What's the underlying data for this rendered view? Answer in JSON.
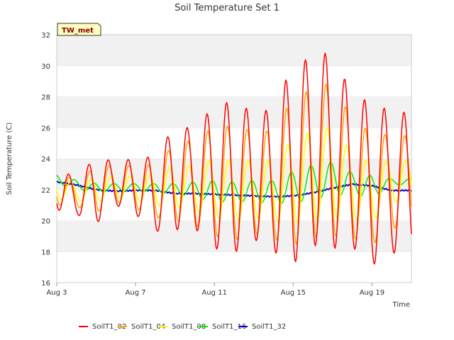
{
  "chart_data": {
    "type": "line",
    "title": "Soil Temperature Set 1",
    "xlabel": "Time",
    "ylabel": "Soil Temperature (C)",
    "station_tag": "TW_met",
    "ylim": [
      16,
      32
    ],
    "yticks": [
      16,
      18,
      20,
      22,
      24,
      26,
      28,
      30,
      32
    ],
    "xlim": [
      "2024-08-03",
      "2024-08-21"
    ],
    "xticks": [
      {
        "date": "2024-08-03",
        "label": "Aug 3"
      },
      {
        "date": "2024-08-07",
        "label": "Aug 7"
      },
      {
        "date": "2024-08-11",
        "label": "Aug 11"
      },
      {
        "date": "2024-08-15",
        "label": "Aug 15"
      },
      {
        "date": "2024-08-19",
        "label": "Aug 19"
      }
    ],
    "grid": "horizontal bands",
    "legend_position": "bottom",
    "x": [
      "2024-08-03",
      "2024-08-04",
      "2024-08-05",
      "2024-08-06",
      "2024-08-07",
      "2024-08-08",
      "2024-08-09",
      "2024-08-10",
      "2024-08-11",
      "2024-08-12",
      "2024-08-13",
      "2024-08-14",
      "2024-08-15",
      "2024-08-16",
      "2024-08-17",
      "2024-08-18",
      "2024-08-19",
      "2024-08-20"
    ],
    "series": [
      {
        "name": "SoilT1_02",
        "color": "#ff0000",
        "phase": 0.62,
        "min": [
          20.7,
          20.4,
          19.8,
          21.0,
          20.4,
          19.3,
          19.4,
          19.5,
          18.2,
          17.9,
          18.8,
          18.0,
          17.2,
          18.4,
          18.2,
          18.3,
          17.1,
          17.9
        ],
        "max": [
          23.8,
          22.5,
          24.3,
          23.7,
          24.1,
          24.1,
          26.2,
          25.9,
          27.5,
          27.7,
          27.0,
          27.2,
          30.2,
          30.5,
          31.0,
          28.0,
          27.7,
          27.0
        ]
      },
      {
        "name": "SoilT1_04",
        "color": "#ffa500",
        "phase": 0.66,
        "min": [
          21.0,
          20.9,
          20.5,
          21.2,
          20.8,
          20.2,
          20.0,
          19.7,
          19.0,
          18.7,
          19.2,
          18.8,
          18.4,
          18.9,
          19.0,
          18.9,
          18.4,
          19.5
        ],
        "max": [
          23.5,
          22.4,
          23.6,
          23.5,
          23.6,
          23.6,
          25.0,
          25.2,
          26.1,
          26.1,
          25.8,
          25.8,
          28.0,
          28.5,
          29.0,
          26.5,
          25.7,
          25.5
        ]
      },
      {
        "name": "SoilT1_08",
        "color": "#ffff00",
        "phase": 0.72,
        "min": [
          21.4,
          21.3,
          21.2,
          21.5,
          21.3,
          21.0,
          20.9,
          20.6,
          20.2,
          20.0,
          20.2,
          20.0,
          19.8,
          20.0,
          20.2,
          20.1,
          19.9,
          21.2
        ],
        "max": [
          22.9,
          22.3,
          22.8,
          22.8,
          22.9,
          23.0,
          23.6,
          23.5,
          24.0,
          23.9,
          23.9,
          23.9,
          25.3,
          25.8,
          26.1,
          24.4,
          23.7,
          23.9
        ]
      },
      {
        "name": "SoilT1_16",
        "color": "#00ee00",
        "phase": 0.9,
        "min": [
          22.4,
          22.0,
          21.8,
          21.9,
          21.9,
          21.8,
          21.7,
          21.5,
          21.2,
          21.2,
          21.2,
          21.1,
          21.1,
          21.4,
          21.6,
          21.7,
          21.4,
          22.3
        ],
        "max": [
          23.0,
          22.6,
          22.4,
          22.4,
          22.4,
          22.4,
          22.4,
          22.5,
          22.6,
          22.5,
          22.6,
          22.6,
          23.2,
          23.6,
          23.8,
          23.1,
          22.9,
          22.7
        ]
      },
      {
        "name": "SoilT1_32",
        "color": "#0000cc",
        "phase": 0.0,
        "min": [
          22.5,
          22.3,
          22.0,
          21.9,
          21.95,
          21.95,
          21.75,
          21.75,
          21.7,
          21.65,
          21.6,
          21.55,
          21.6,
          21.8,
          22.1,
          22.35,
          22.25,
          21.95
        ],
        "max": [
          22.5,
          22.3,
          22.0,
          21.9,
          21.95,
          21.95,
          21.75,
          21.75,
          21.7,
          21.65,
          21.6,
          21.55,
          21.6,
          21.8,
          22.1,
          22.35,
          22.25,
          21.95
        ]
      }
    ]
  }
}
